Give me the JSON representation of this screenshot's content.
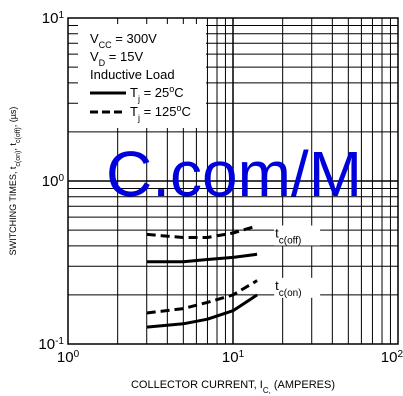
{
  "chart_data": {
    "type": "line",
    "x_scale": "log",
    "y_scale": "log",
    "xlim": [
      1,
      100
    ],
    "ylim": [
      0.1,
      10
    ],
    "grid": true,
    "xlabel": "COLLECTOR CURRENT, I_C, (AMPERES)",
    "ylabel": "SWITCHING TIMES, t_c(on), t_c(off), (µs)",
    "x_ticks": [
      {
        "value": 1,
        "base": "10",
        "exp": "0"
      },
      {
        "value": 10,
        "base": "10",
        "exp": "1"
      },
      {
        "value": 100,
        "base": "10",
        "exp": "2"
      }
    ],
    "y_ticks": [
      {
        "value": 0.1,
        "base": "10",
        "exp": "-1"
      },
      {
        "value": 1,
        "base": "10",
        "exp": "0"
      },
      {
        "value": 10,
        "base": "10",
        "exp": "1"
      }
    ],
    "conditions": {
      "vcc": "V_CC = 300V",
      "vd": "V_D = 15V",
      "load": "Inductive Load"
    },
    "legend": [
      {
        "label": "T_j = 25°C",
        "style": "solid"
      },
      {
        "label": "T_j = 125°C",
        "style": "dashed"
      }
    ],
    "series": [
      {
        "label": "t_c(off)",
        "style": "dashed",
        "x": [
          3,
          5,
          7,
          10,
          14
        ],
        "y": [
          0.47,
          0.45,
          0.45,
          0.48,
          0.53
        ]
      },
      {
        "label": "t_c(off)",
        "style": "solid",
        "x": [
          3,
          5,
          7,
          10,
          14
        ],
        "y": [
          0.32,
          0.32,
          0.33,
          0.34,
          0.355
        ]
      },
      {
        "label": "t_c(on)",
        "style": "dashed",
        "x": [
          3,
          5,
          7,
          10,
          14
        ],
        "y": [
          0.155,
          0.165,
          0.18,
          0.2,
          0.245
        ]
      },
      {
        "label": "t_c(on)",
        "style": "solid",
        "x": [
          3,
          5,
          7,
          10,
          14
        ],
        "y": [
          0.127,
          0.133,
          0.142,
          0.16,
          0.2
        ]
      }
    ],
    "curve_labels": [
      {
        "main": "t",
        "sub": "c(off)",
        "at": [
          18,
          0.45
        ]
      },
      {
        "main": "t",
        "sub": "c(on)",
        "at": [
          18,
          0.215
        ]
      }
    ],
    "watermark": "C.com/M"
  }
}
